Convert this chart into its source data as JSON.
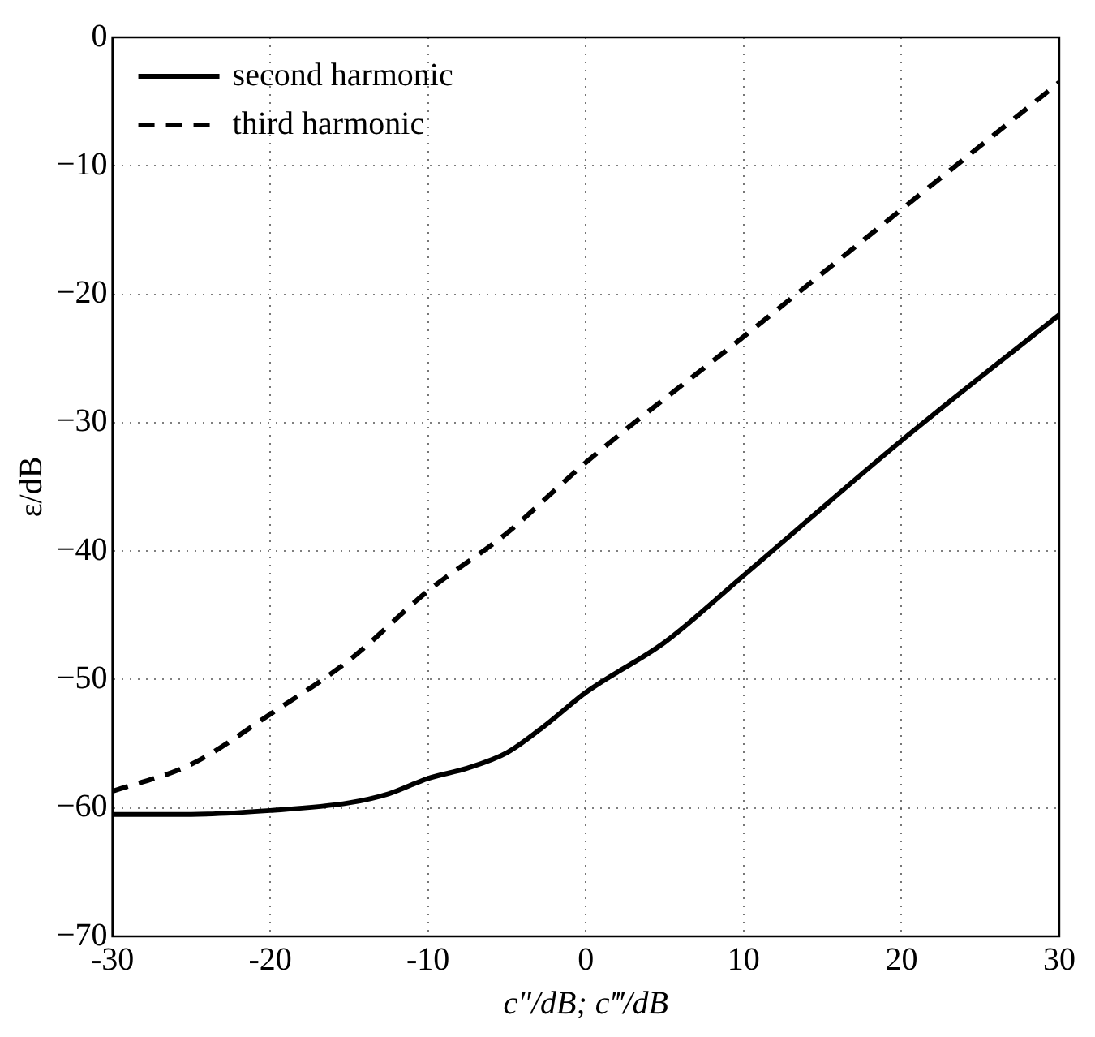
{
  "chart_data": {
    "type": "line",
    "xlabel": "c″/dB; c‴/dB",
    "ylabel": "ε/dB",
    "xlim": [
      -30,
      30
    ],
    "xticks": [
      -30,
      -20,
      -10,
      0,
      10,
      20,
      30
    ],
    "ylim": [
      -70,
      0
    ],
    "yticks": [
      -70,
      -60,
      -50,
      -40,
      -30,
      -20,
      -10,
      0
    ],
    "grid": true,
    "legend": "top left",
    "marker": "none",
    "series": [
      {
        "name": "second harmonic",
        "color": "#000000",
        "line_style": "solid",
        "x": [
          -30,
          -25,
          -20,
          -15,
          -12.5,
          -10,
          -7.5,
          -5,
          -2.5,
          0,
          5,
          10,
          20,
          30
        ],
        "values": [
          -60.5,
          -60.5,
          -60.2,
          -59.6,
          -58.9,
          -57.7,
          -56.9,
          -55.7,
          -53.5,
          -51.0,
          -47.1,
          -41.9,
          -31.4,
          -21.6
        ]
      },
      {
        "name": "third harmonic",
        "color": "#000000",
        "line_style": "dashed",
        "x": [
          -30,
          -25,
          -20,
          -15,
          -10,
          -5,
          -2,
          0,
          10,
          20,
          30
        ],
        "values": [
          -58.7,
          -56.6,
          -52.7,
          -48.5,
          -43.1,
          -38.6,
          -35.3,
          -33.1,
          -23.3,
          -13.4,
          -3.5
        ]
      }
    ]
  }
}
